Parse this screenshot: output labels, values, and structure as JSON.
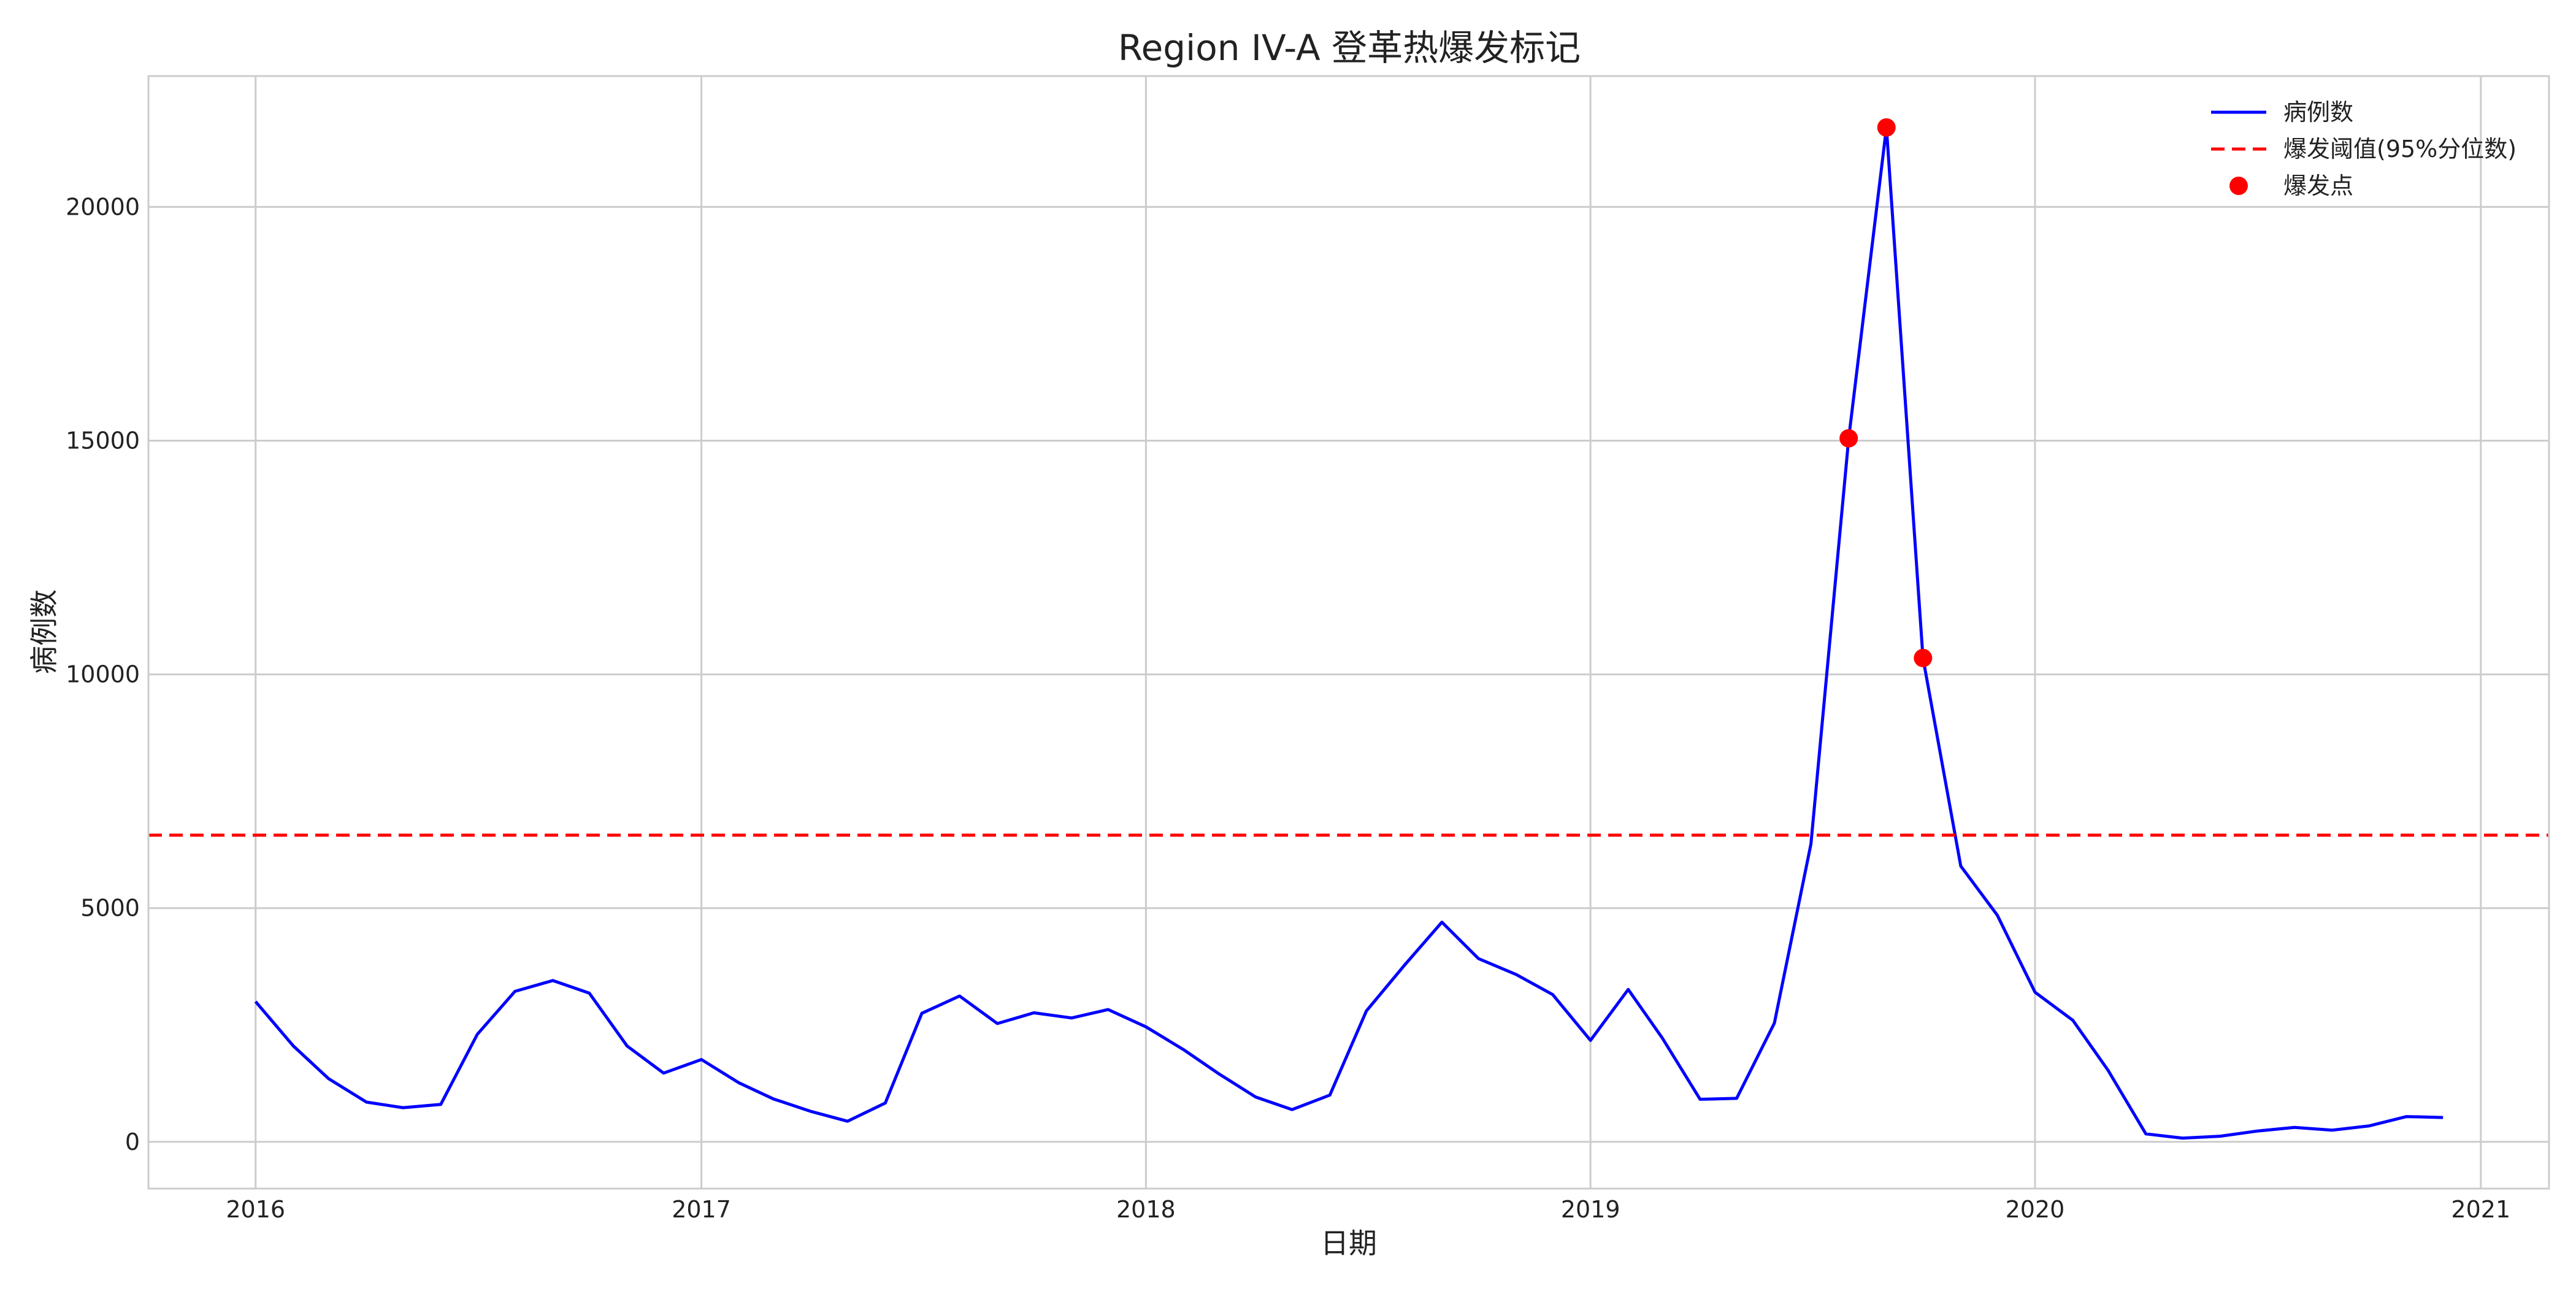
{
  "chart_data": {
    "type": "line",
    "title": "Region IV-A 登革热爆发标记",
    "xlabel": "日期",
    "ylabel": "病例数",
    "x_axis": {
      "type": "date",
      "range": [
        "2015-10-05",
        "2021-02-26"
      ],
      "ticks": [
        "2016-01-01",
        "2017-01-01",
        "2018-01-01",
        "2019-01-01",
        "2020-01-01",
        "2021-01-01"
      ],
      "tick_labels": [
        "2016",
        "2017",
        "2018",
        "2019",
        "2020",
        "2021"
      ]
    },
    "y_axis": {
      "range": [
        -1000,
        22800
      ],
      "ticks": [
        0,
        5000,
        10000,
        15000,
        20000
      ],
      "tick_labels": [
        "0",
        "5000",
        "10000",
        "15000",
        "20000"
      ]
    },
    "grid": true,
    "legend_position": "top-right",
    "series": [
      {
        "name": "病例数",
        "kind": "line",
        "color": "#0000ff",
        "x": [
          "2016-01-01",
          "2016-02-01",
          "2016-03-01",
          "2016-04-01",
          "2016-05-01",
          "2016-06-01",
          "2016-07-01",
          "2016-08-01",
          "2016-09-01",
          "2016-10-01",
          "2016-11-01",
          "2016-12-01",
          "2017-01-01",
          "2017-02-01",
          "2017-03-01",
          "2017-04-01",
          "2017-05-01",
          "2017-06-01",
          "2017-07-01",
          "2017-08-01",
          "2017-09-01",
          "2017-10-01",
          "2017-11-01",
          "2017-12-01",
          "2018-01-01",
          "2018-02-01",
          "2018-03-01",
          "2018-04-01",
          "2018-05-01",
          "2018-06-01",
          "2018-07-01",
          "2018-08-01",
          "2018-09-01",
          "2018-10-01",
          "2018-11-01",
          "2018-12-01",
          "2019-01-01",
          "2019-02-01",
          "2019-03-01",
          "2019-04-01",
          "2019-05-01",
          "2019-06-01",
          "2019-07-01",
          "2019-08-01",
          "2019-09-01",
          "2019-10-01",
          "2019-11-01",
          "2019-12-01",
          "2020-01-01",
          "2020-02-01",
          "2020-03-01",
          "2020-04-01",
          "2020-05-01",
          "2020-06-01",
          "2020-07-01",
          "2020-08-01",
          "2020-09-01",
          "2020-10-01",
          "2020-11-01",
          "2020-12-01"
        ],
        "y": [
          3000,
          2050,
          1350,
          850,
          730,
          800,
          2300,
          3220,
          3450,
          3180,
          2050,
          1470,
          1760,
          1260,
          920,
          650,
          440,
          830,
          2750,
          3120,
          2530,
          2760,
          2650,
          2830,
          2460,
          1970,
          1470,
          960,
          690,
          1000,
          2800,
          3770,
          4700,
          3920,
          3580,
          3150,
          2170,
          3260,
          2220,
          910,
          930,
          2540,
          6370,
          15050,
          21700,
          10350,
          5900,
          4850,
          3200,
          2600,
          1530,
          170,
          80,
          120,
          230,
          310,
          250,
          340,
          540,
          520
        ]
      },
      {
        "name": "爆发阈值(95%分位数)",
        "kind": "hline",
        "color": "#ff0000",
        "style": "dashed",
        "y": 6560
      },
      {
        "name": "爆发点",
        "kind": "scatter",
        "color": "#ff0000",
        "x": [
          "2019-08-01",
          "2019-09-01",
          "2019-10-01"
        ],
        "y": [
          15050,
          21700,
          10350
        ]
      }
    ]
  }
}
